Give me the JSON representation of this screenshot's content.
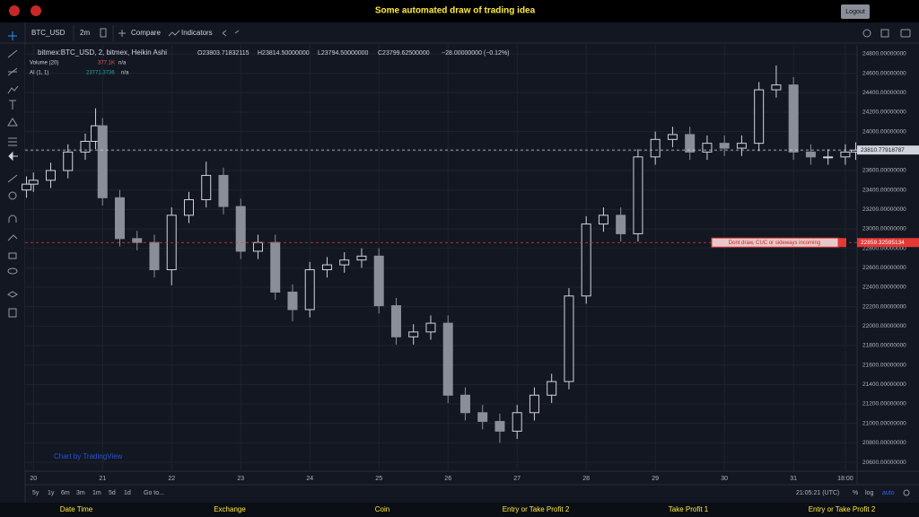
{
  "header": {
    "title": "Some automated draw of trading idea",
    "button": "Logout"
  },
  "toolbar": {
    "symbol": "BTC_USD",
    "interval": "2m",
    "compare": "Compare",
    "indicators": "Indicators"
  },
  "legend": {
    "symbol": "bitmex:BTC_USD, 2, bitmex, Heikin Ashi",
    "open": "O23803.71832115",
    "high": "H23814.50000000",
    "low": "L23794.50000000",
    "close": "C23799.62500000",
    "change": "−28.00000000 (−0.12%)",
    "volume_name": "Volume (20)",
    "volume_value": "377.1K",
    "volume_na": "n/a",
    "ai_name": "AI (1, 1)",
    "ai_value": "23771.3736",
    "ai_na": "n/a"
  },
  "chart_data": {
    "type": "candlestick",
    "watermark": "Chart by TradingView",
    "x": [
      19.9,
      20,
      20.25,
      20.5,
      20.75,
      20.9,
      21,
      21.25,
      21.5,
      21.75,
      22,
      22.25,
      22.5,
      22.75,
      23,
      23.25,
      23.5,
      23.75,
      24,
      24.25,
      24.5,
      24.75,
      25,
      25.25,
      25.5,
      25.75,
      26,
      26.25,
      26.5,
      26.75,
      27,
      27.25,
      27.5,
      27.75,
      28,
      28.25,
      28.5,
      28.75,
      29,
      29.25,
      29.5,
      29.75,
      30,
      30.25,
      30.5,
      30.75,
      31,
      31.25,
      31.5,
      31.75,
      31.9
    ],
    "open": [
      23400,
      23460,
      23500,
      23600,
      23790,
      23900,
      24060,
      23320,
      22900,
      22860,
      22580,
      23140,
      23300,
      23550,
      23230,
      22770,
      22860,
      22350,
      22170,
      22580,
      22630,
      22680,
      22720,
      22210,
      21890,
      21940,
      22030,
      21290,
      21110,
      21020,
      20920,
      21110,
      21290,
      21430,
      22310,
      23050,
      23140,
      22950,
      23740,
      23920,
      23970,
      23790,
      23880,
      23830,
      23880,
      24430,
      24480,
      23790,
      23740,
      23740,
      23790
    ],
    "high": [
      23540,
      23580,
      23680,
      23870,
      23980,
      24240,
      24140,
      23400,
      22980,
      22940,
      23220,
      23380,
      23690,
      23630,
      23310,
      22940,
      22940,
      22430,
      22660,
      22710,
      22760,
      22800,
      22800,
      22290,
      22020,
      22110,
      22110,
      21370,
      21190,
      21100,
      21190,
      21370,
      21510,
      22390,
      23130,
      23220,
      23220,
      23820,
      24000,
      24050,
      24050,
      23960,
      23960,
      23960,
      24510,
      24680,
      24560,
      23870,
      23820,
      23870,
      23890
    ],
    "low": [
      23320,
      23380,
      23420,
      23520,
      23710,
      23820,
      23240,
      22820,
      22780,
      22500,
      22420,
      23060,
      23220,
      23150,
      22690,
      22690,
      22270,
      22050,
      22090,
      22500,
      22550,
      22600,
      22130,
      21810,
      21810,
      21860,
      21210,
      21030,
      20940,
      20800,
      20840,
      21030,
      21210,
      21350,
      22230,
      22970,
      22870,
      22870,
      23660,
      23840,
      23710,
      23710,
      23750,
      23750,
      23800,
      24350,
      23710,
      23660,
      23660,
      23660,
      23710
    ],
    "close": [
      23460,
      23500,
      23600,
      23790,
      23900,
      24060,
      23320,
      22900,
      22860,
      22580,
      23140,
      23300,
      23550,
      23230,
      22770,
      22860,
      22350,
      22170,
      22580,
      22630,
      22680,
      22720,
      22210,
      21890,
      21940,
      22030,
      21290,
      21110,
      21020,
      20920,
      21110,
      21290,
      21430,
      22310,
      23050,
      23140,
      22950,
      23740,
      23920,
      23970,
      23790,
      23880,
      23830,
      23880,
      24430,
      24480,
      23790,
      23740,
      23740,
      23790,
      23810
    ],
    "up_color": "#d1d4dc",
    "down_color": "#8a8e99",
    "xlim": [
      19.88,
      31.92
    ],
    "xticks": [
      20,
      21,
      22,
      23,
      24,
      25,
      26,
      27,
      28,
      29,
      30,
      31,
      {
        "value": 31.75,
        "label": "18:00"
      }
    ],
    "ylim": [
      20508,
      24892
    ],
    "yticks": [
      {
        "value": 20600,
        "label": "20600.00000000"
      },
      {
        "value": 20800,
        "label": "20800.00000000"
      },
      {
        "value": 21000,
        "label": "21000.00000000"
      },
      {
        "value": 21200,
        "label": "21200.00000000"
      },
      {
        "value": 21400,
        "label": "21400.00000000"
      },
      {
        "value": 21600,
        "label": "21600.00000000"
      },
      {
        "value": 21800,
        "label": "21800.00000000"
      },
      {
        "value": 22000,
        "label": "22000.00000000"
      },
      {
        "value": 22200,
        "label": "22200.00000000"
      },
      {
        "value": 22400,
        "label": "22400.00000000"
      },
      {
        "value": 22600,
        "label": "22600.00000000"
      },
      {
        "value": 22800,
        "label": "22800.00000000"
      },
      {
        "value": 23000,
        "label": "23000.00000000"
      },
      {
        "value": 23200,
        "label": "23200.00000000"
      },
      {
        "value": 23400,
        "label": "23400.00000000"
      },
      {
        "value": 23600,
        "label": "23600.00000000"
      },
      {
        "value": 23800,
        "label": "23800.00000000"
      },
      {
        "value": 24000,
        "label": "24000.00000000"
      },
      {
        "value": 24200,
        "label": "24200.00000000"
      },
      {
        "value": 24400,
        "label": "24400.00000000"
      },
      {
        "value": 24600,
        "label": "24600.00000000"
      },
      {
        "value": 24800,
        "label": "24800.00000000"
      }
    ],
    "grid": true,
    "price_lines": [
      {
        "value": 23810.77918787,
        "color": "#d1d4dc"
      },
      {
        "value": 22859.32595134,
        "color": "#e53935",
        "annotation": "Dont draw, CUC or sideways incoming"
      }
    ]
  },
  "bottom": {
    "ranges": [
      "5y",
      "1y",
      "6m",
      "3m",
      "1m",
      "5d",
      "1d"
    ],
    "goto": "Go to...",
    "time": "21:05:21 (UTC)",
    "options": [
      "%",
      "log",
      "auto"
    ]
  },
  "footer": [
    "Date Time",
    "Exchange",
    "Coin",
    "Entry or Take Profit 2",
    "Take Profit 1",
    "Entry or Take Profit 2"
  ]
}
